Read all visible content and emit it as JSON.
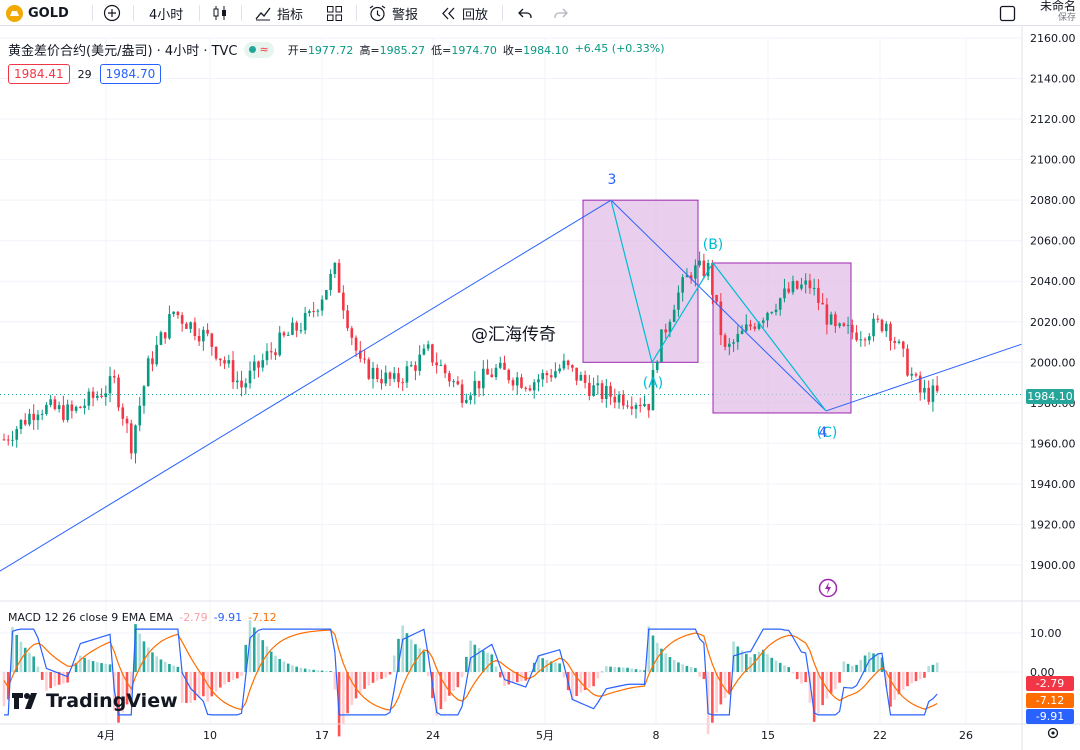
{
  "toolbar": {
    "symbol": "GOLD",
    "interval": "4小时",
    "indicators_label": "指标",
    "alert_label": "警报",
    "replay_label": "回放",
    "layout_name": "未命名",
    "save_label": "保存"
  },
  "legend": {
    "title": "黄金差价合约(美元/盎司) · 4小时 · TVC",
    "open_label": "开=",
    "open": "1977.72",
    "high_label": "高=",
    "high": "1985.27",
    "low_label": "低=",
    "low": "1974.70",
    "close_label": "收=",
    "close": "1984.10",
    "change": "+6.45 (+0.33%)",
    "bid": "1984.41",
    "spread": "29",
    "ask": "1984.70"
  },
  "watermark": "@汇海传奇",
  "wave_labels": {
    "w3": "3",
    "wA": "(A)",
    "wB": "(B)",
    "wC": "(C)",
    "w4": "4"
  },
  "macd": {
    "label": "MACD 12 26 close 9 EMA EMA",
    "hist": "-2.79",
    "macd": "-9.91",
    "signal": "-7.12"
  },
  "brand": "TradingView",
  "colors": {
    "up": "#089981",
    "down": "#f23645",
    "line": "#2962ff",
    "wave": "#00bcd4",
    "box": "#e1bee7",
    "macd": "#2962ff",
    "signal": "#ff6d00"
  },
  "chart_data": {
    "type": "candlestick",
    "price_axis": {
      "min": 1900,
      "max": 2160,
      "ticks": [
        1900,
        1920,
        1940,
        1960,
        1980,
        2000,
        2020,
        2040,
        2060,
        2080,
        2100,
        2120,
        2140,
        2160
      ]
    },
    "last_price": 1984.1,
    "time_axis": [
      "4月",
      "10",
      "17",
      "24",
      "5月",
      "8",
      "15",
      "22",
      "26"
    ],
    "price_path": [
      {
        "t": 0,
        "p": 1962
      },
      {
        "t": 8,
        "p": 1978
      },
      {
        "t": 16,
        "p": 1975
      },
      {
        "t": 26,
        "p": 1990
      },
      {
        "t": 30,
        "p": 1960
      },
      {
        "t": 34,
        "p": 1998
      },
      {
        "t": 40,
        "p": 2025
      },
      {
        "t": 48,
        "p": 2012
      },
      {
        "t": 56,
        "p": 1988
      },
      {
        "t": 64,
        "p": 2008
      },
      {
        "t": 72,
        "p": 2022
      },
      {
        "t": 78,
        "p": 2045
      },
      {
        "t": 84,
        "p": 1998
      },
      {
        "t": 92,
        "p": 1990
      },
      {
        "t": 100,
        "p": 2005
      },
      {
        "t": 108,
        "p": 1985
      },
      {
        "t": 116,
        "p": 1996
      },
      {
        "t": 124,
        "p": 1990
      },
      {
        "t": 132,
        "p": 1998
      },
      {
        "t": 140,
        "p": 1985
      },
      {
        "t": 148,
        "p": 1982
      },
      {
        "t": 152,
        "p": 1980
      },
      {
        "t": 154,
        "p": 2005
      },
      {
        "t": 158,
        "p": 2030
      },
      {
        "t": 162,
        "p": 2045
      },
      {
        "t": 166,
        "p": 2046
      },
      {
        "t": 170,
        "p": 2005
      },
      {
        "t": 176,
        "p": 2018
      },
      {
        "t": 182,
        "p": 2030
      },
      {
        "t": 186,
        "p": 2036
      },
      {
        "t": 190,
        "p": 2038
      },
      {
        "t": 196,
        "p": 2015
      },
      {
        "t": 202,
        "p": 2015
      },
      {
        "t": 208,
        "p": 2020
      },
      {
        "t": 212,
        "p": 2002
      },
      {
        "t": 216,
        "p": 1985
      },
      {
        "t": 220,
        "p": 1984
      }
    ],
    "trendline": {
      "from": 1897,
      "to": 2080
    },
    "wave_points": {
      "three": 2080,
      "A": 2000,
      "B": 2049,
      "C": 1976
    },
    "macd_axis": {
      "ticks": [
        10,
        0
      ]
    }
  }
}
